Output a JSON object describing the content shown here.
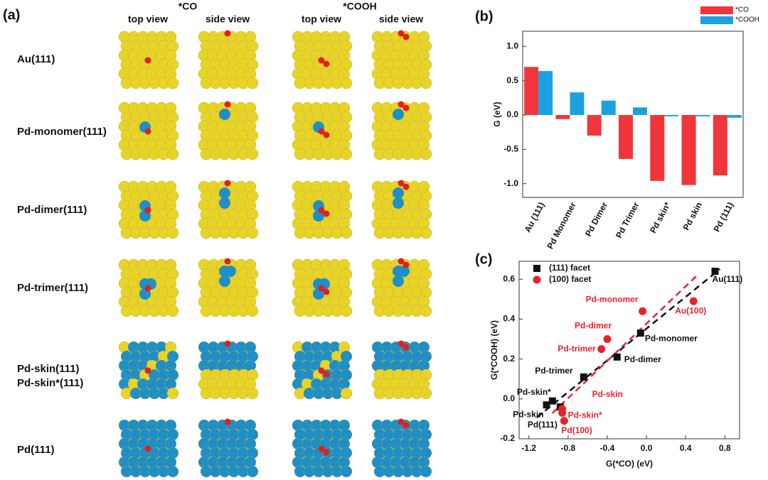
{
  "panel_a": {
    "label": "(a)",
    "groups": [
      "*CO",
      "*COOH"
    ],
    "views": [
      "top view",
      "side view",
      "top view",
      "side view"
    ],
    "rows": [
      "Au(111)",
      "Pd-monomer(111)",
      "Pd-dimer(111)",
      "Pd-trimer(111)",
      "Pd-skin(111)",
      "Pd-skin*(111)",
      "Pd(111)"
    ]
  },
  "chart_data": [
    {
      "type": "bar",
      "panel_label": "(b)",
      "y_label": "G (eV)",
      "categories": [
        "Au (111)",
        "Pd Monomer",
        "Pd Dimer",
        "Pd Trimer",
        "Pd skin*",
        "Pd skin",
        "Pd (111)"
      ],
      "series": [
        {
          "name": "*CO",
          "color": "#f0363a",
          "values": [
            0.7,
            -0.06,
            -0.3,
            -0.64,
            -0.96,
            -1.02,
            -0.88
          ]
        },
        {
          "name": "*COOH",
          "color": "#1ba2de",
          "values": [
            0.64,
            0.33,
            0.21,
            0.11,
            -0.02,
            -0.02,
            -0.04
          ]
        }
      ],
      "ylim": [
        -1.2,
        1.22
      ],
      "yticks": [
        {
          "value": -1,
          "label": "-1.0"
        },
        {
          "value": -0.5,
          "label": "-0.5"
        },
        {
          "value": 0,
          "label": "0.0"
        },
        {
          "value": 0.5,
          "label": "0.5"
        },
        {
          "value": 1,
          "label": "1.0"
        }
      ],
      "legend": "top-right"
    },
    {
      "type": "scatter",
      "panel_label": "(c)",
      "x_label": "G(*CO) (eV)",
      "y_label": "G(*COOH) (eV)",
      "series": [
        {
          "name": "(111) facet",
          "color": "#111111",
          "marker": "square",
          "labels": [
            "Au(111)",
            "Pd-monomer",
            "Pd-dimer",
            "Pd-trimer",
            "Pd-skin*",
            "Pd-skin",
            "Pd(111)"
          ],
          "x": [
            0.7,
            -0.06,
            -0.3,
            -0.64,
            -0.96,
            -1.02,
            -0.88
          ],
          "values": [
            0.64,
            0.33,
            0.21,
            0.11,
            -0.01,
            -0.03,
            -0.04
          ]
        },
        {
          "name": "(100) facet",
          "color": "#e8222a",
          "marker": "circle",
          "labels": [
            "Au(100)",
            "Pd-monomer",
            "Pd-dimer",
            "Pd-trimer",
            "Pd-skin",
            "Pd-skin*",
            "Pd(100)"
          ],
          "x": [
            0.48,
            -0.04,
            -0.4,
            -0.46,
            -0.86,
            -0.86,
            -0.84
          ],
          "values": [
            0.49,
            0.44,
            0.3,
            0.25,
            -0.05,
            -0.07,
            -0.11
          ]
        }
      ],
      "xlim": [
        -1.3,
        0.95
      ],
      "xticks": [
        {
          "value": -1.2,
          "label": "-1.2"
        },
        {
          "value": -0.8,
          "label": "-0.8"
        },
        {
          "value": -0.4,
          "label": "-0.4"
        },
        {
          "value": 0,
          "label": "0.0"
        },
        {
          "value": 0.4,
          "label": "0.4"
        },
        {
          "value": 0.8,
          "label": "0.8"
        }
      ],
      "ylim": [
        -0.2,
        0.69
      ],
      "yticks": [
        {
          "value": -0.2,
          "label": "-0.2"
        },
        {
          "value": 0,
          "label": "0.0"
        },
        {
          "value": 0.2,
          "label": "0.2"
        },
        {
          "value": 0.4,
          "label": "0.4"
        },
        {
          "value": 0.6,
          "label": "0.6"
        }
      ],
      "legend": "top-left",
      "fit_lines": true
    }
  ]
}
